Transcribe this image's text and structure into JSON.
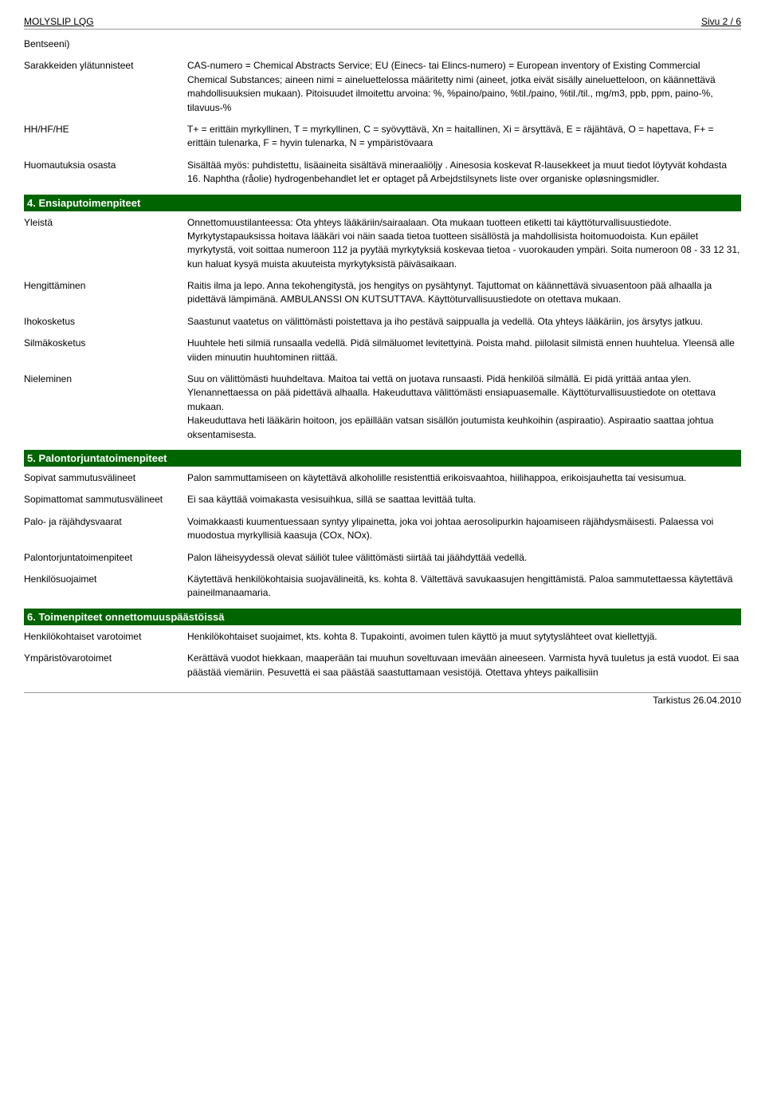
{
  "page": {
    "title": "MOLYSLIP LQG",
    "page_indicator": "Sivu 2 / 6",
    "footer": "Tarkistus 26.04.2010"
  },
  "top_rows": [
    {
      "label": "Bentseeni)",
      "value": ""
    },
    {
      "label": "Sarakkeiden ylätunnisteet",
      "value": "CAS-numero = Chemical Abstracts Service; EU (Einecs- tai Elincs-numero) = European inventory of Existing Commercial Chemical Substances; aineen nimi = aineluettelossa määritetty nimi (aineet, jotka eivät sisälly aineluetteloon, on käännettävä mahdollisuuksien mukaan). Pitoisuudet ilmoitettu arvoina: %, %paino/paino, %til./paino, %til./til., mg/m3, ppb, ppm, paino-%, tilavuus-%"
    },
    {
      "label": "HH/HF/HE",
      "value": "T+ = erittäin myrkyllinen, T = myrkyllinen, C = syövyttävä, Xn = haitallinen, Xi = ärsyttävä, E = räjähtävä, O = hapettava, F+ = erittäin tulenarka, F = hyvin tulenarka, N = ympäristövaara"
    },
    {
      "label": "Huomautuksia osasta",
      "value": "Sisältää myös: puhdistettu, lisäaineita sisältävä mineraaliöljy . Ainesosia koskevat R-lausekkeet ja muut tiedot löytyvät kohdasta 16. Naphtha (råolie) hydrogenbehandlet let er optaget på Arbejdstilsynets liste over organiske opløsningsmidler."
    }
  ],
  "sections": [
    {
      "heading": "4. Ensiaputoimenpiteet",
      "rows": [
        {
          "label": "Yleistä",
          "value": "Onnettomuustilanteessa: Ota yhteys lääkäriin/sairaalaan. Ota mukaan tuotteen etiketti tai käyttöturvallisuustiedote. Myrkytystapauksissa hoitava lääkäri voi näin saada tietoa tuotteen sisällöstä ja mahdollisista hoitomuodoista. Kun epäilet myrkytystä, voit soittaa numeroon 112 ja pyytää myrkytyksiä koskevaa tietoa -  vuorokauden ympäri. Soita numeroon 08 - 33 12 31, kun haluat kysyä muista akuuteista myrkytyksistä päiväsaikaan."
        },
        {
          "label": "Hengittäminen",
          "value": "Raitis ilma ja lepo. Anna tekohengitystä, jos hengitys on pysähtynyt. Tajuttomat on käännettävä sivuasentoon pää alhaalla ja pidettävä lämpimänä. AMBULANSSI ON KUTSUTTAVA. Käyttöturvallisuustiedote on otettava mukaan."
        },
        {
          "label": "Ihokosketus",
          "value": "Saastunut vaatetus on välittömästi poistettava ja iho pestävä saippualla ja vedellä. Ota yhteys lääkäriin, jos ärsytys jatkuu."
        },
        {
          "label": "Silmäkosketus",
          "value": "Huuhtele heti silmiä runsaalla vedellä. Pidä silmäluomet levitettyinä. Poista mahd. piilolasit silmistä ennen huuhtelua. Yleensä alle viiden minuutin huuhtominen riittää."
        },
        {
          "label": "Nieleminen",
          "value": "Suu on välittömästi huuhdeltava. Maitoa tai vettä on juotava runsaasti. Pidä henkilöä silmällä. Ei pidä yrittää antaa ylen. Ylenannettaessa on pää pidettävä alhaalla. Hakeuduttava välittömästi ensiapuasemalle. Käyttöturvallisuustiedote on otettava mukaan.\nHakeuduttava heti lääkärin hoitoon, jos epäillään vatsan sisällön joutumista keuhkoihin (aspiraatio). Aspiraatio saattaa johtua oksentamisesta."
        }
      ]
    },
    {
      "heading": "5. Palontorjuntatoimenpiteet",
      "rows": [
        {
          "label": "Sopivat sammutusvälineet",
          "value": "Palon sammuttamiseen on käytettävä alkoholille resistenttiä erikoisvaahtoa, hiilihappoa, erikoisjauhetta tai vesisumua."
        },
        {
          "label": "Sopimattomat sammutusvälineet",
          "value": "Ei saa käyttää voimakasta vesisuihkua, sillä se saattaa levittää tulta."
        },
        {
          "label": "Palo- ja räjähdysvaarat",
          "value": "Voimakkaasti kuumentuessaan syntyy ylipainetta, joka voi johtaa aerosolipurkin hajoamiseen räjähdysmäisesti. Palaessa voi muodostua myrkyllisiä kaasuja (COx, NOx)."
        },
        {
          "label": "Palontorjuntatoimenpiteet",
          "value": "Palon läheisyydessä olevat säiliöt tulee välittömästi siirtää tai jäähdyttää vedellä."
        },
        {
          "label": "Henkilösuojaimet",
          "value": "Käytettävä henkilökohtaisia suojavälineitä, ks. kohta 8. Vältettävä savukaasujen hengittämistä. Paloa sammutettaessa käytettävä paineilmanaamaria."
        }
      ]
    },
    {
      "heading": "6. Toimenpiteet onnettomuuspäästöissä",
      "rows": [
        {
          "label": "Henkilökohtaiset varotoimet",
          "value": "Henkilökohtaiset suojaimet, kts. kohta 8. Tupakointi, avoimen tulen käyttö ja muut sytytyslähteet ovat kiellettyjä."
        },
        {
          "label": "Ympäristövarotoimet",
          "value": "Kerättävä vuodot hiekkaan, maaperään tai muuhun soveltuvaan imevään aineeseen. Varmista hyvä tuuletus ja estä vuodot. Ei saa päästää viemäriin. Pesuvettä ei saa päästää saastuttamaan vesistöjä. Otettava yhteys paikallisiin"
        }
      ]
    }
  ]
}
